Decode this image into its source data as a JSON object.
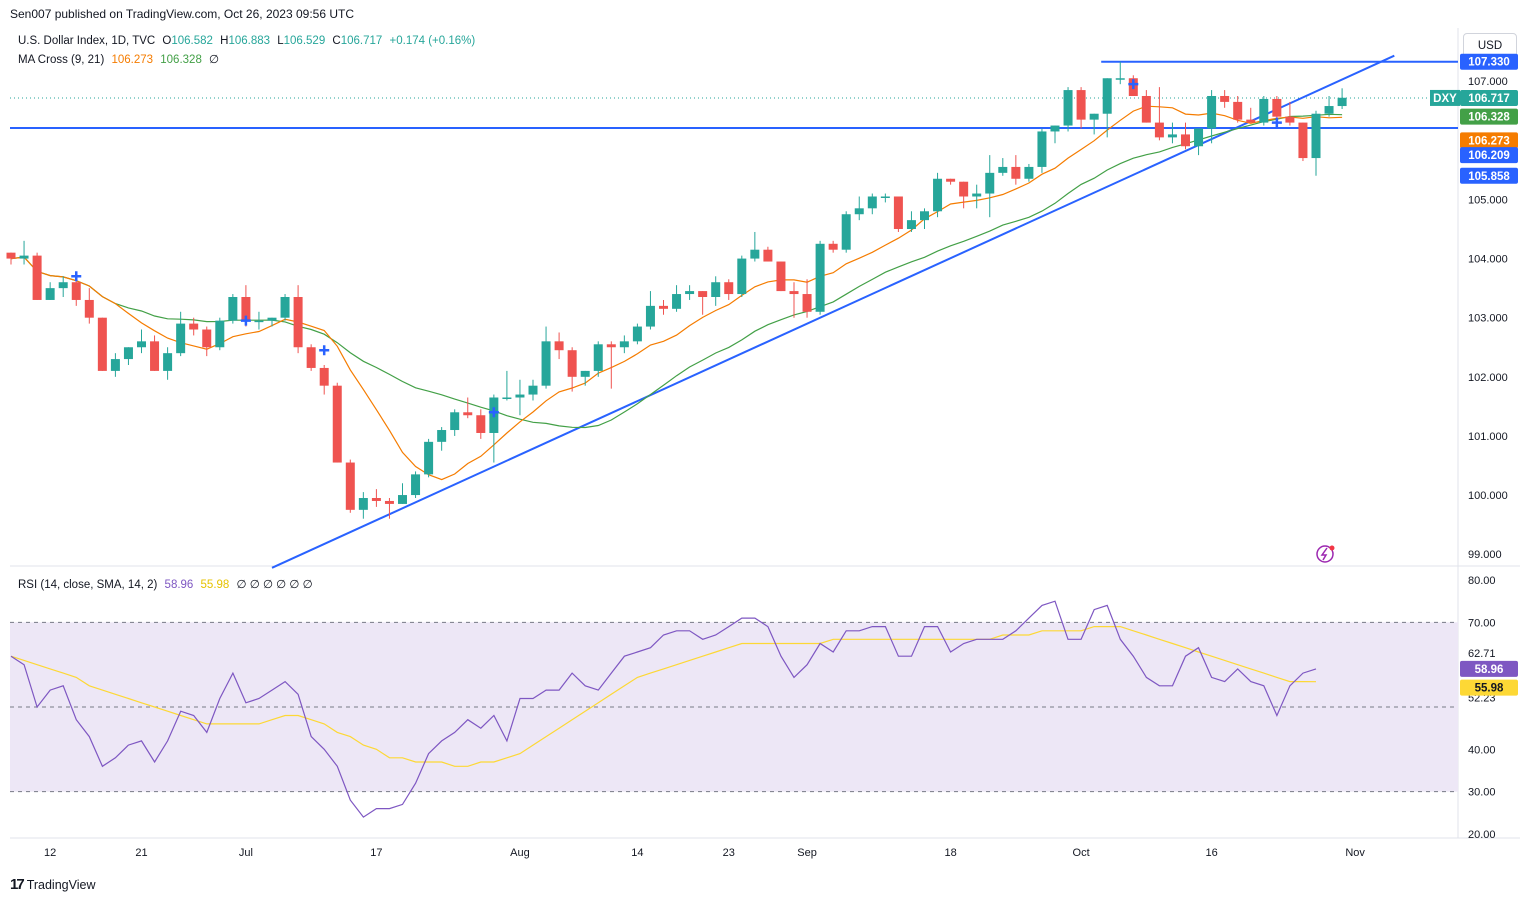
{
  "header": {
    "publisher": "Sen007 published on TradingView.com, Oct 26, 2023 09:56 UTC",
    "symbol": "U.S. Dollar Index, 1D, TVC",
    "ohlc": {
      "o_label": "O",
      "o": "106.582",
      "h_label": "H",
      "h": "106.883",
      "l_label": "L",
      "l": "106.529",
      "c_label": "C",
      "c": "106.717",
      "change": "+0.174 (+0.16%)"
    },
    "ma_legend": {
      "label": "MA Cross (9, 21)",
      "fast": "106.273",
      "slow": "106.328",
      "extra": "∅"
    },
    "rsi_legend": {
      "label": "RSI (14, close, SMA, 14, 2)",
      "rsi": "58.96",
      "sma": "55.98",
      "extras": "∅ ∅ ∅ ∅ ∅ ∅"
    }
  },
  "currency_button": "USD",
  "footer": {
    "brand": "TradingView",
    "logo_icon": "tv-logo-icon"
  },
  "colors": {
    "up": "#26a69a",
    "down": "#ef5350",
    "ma_fast": "#f57c00",
    "ma_slow": "#43a047",
    "trend": "#2962ff",
    "rsi": "#7e57c2",
    "rsi_sma": "#fdd835",
    "rsi_band": "#ede7f6"
  },
  "chart_data": [
    {
      "type": "candlestick",
      "title": "U.S. Dollar Index, 1D, TVC",
      "ylim": [
        98.8,
        107.9
      ],
      "y_ticks": [
        "107.000",
        "106.000",
        "105.000",
        "104.000",
        "103.000",
        "102.000",
        "101.000",
        "100.000",
        "99.000"
      ],
      "x_ticks": [
        {
          "label": "12",
          "i": 3
        },
        {
          "label": "21",
          "i": 10
        },
        {
          "label": "Jul",
          "i": 18
        },
        {
          "label": "17",
          "i": 28
        },
        {
          "label": "Aug",
          "i": 39
        },
        {
          "label": "14",
          "i": 48
        },
        {
          "label": "23",
          "i": 55
        },
        {
          "label": "Sep",
          "i": 61
        },
        {
          "label": "18",
          "i": 72
        },
        {
          "label": "Oct",
          "i": 82
        },
        {
          "label": "16",
          "i": 92
        },
        {
          "label": "Nov",
          "i": 103
        }
      ],
      "candles": [
        [
          104.1,
          104.1,
          103.9,
          104.0
        ],
        [
          104.0,
          104.3,
          103.9,
          104.05
        ],
        [
          104.05,
          104.1,
          103.3,
          103.3
        ],
        [
          103.3,
          103.6,
          103.3,
          103.5
        ],
        [
          103.5,
          103.7,
          103.35,
          103.6
        ],
        [
          103.6,
          103.7,
          103.2,
          103.3
        ],
        [
          103.3,
          103.5,
          102.9,
          103.0
        ],
        [
          103.0,
          103.0,
          102.1,
          102.1
        ],
        [
          102.1,
          102.4,
          102.0,
          102.3
        ],
        [
          102.3,
          102.5,
          102.2,
          102.5
        ],
        [
          102.5,
          102.8,
          102.4,
          102.6
        ],
        [
          102.6,
          102.7,
          102.1,
          102.1
        ],
        [
          102.1,
          102.5,
          101.95,
          102.4
        ],
        [
          102.4,
          103.1,
          102.35,
          102.9
        ],
        [
          102.9,
          103.0,
          102.7,
          102.8
        ],
        [
          102.8,
          102.85,
          102.35,
          102.5
        ],
        [
          102.5,
          103.0,
          102.45,
          102.95
        ],
        [
          102.95,
          103.4,
          102.9,
          103.35
        ],
        [
          103.35,
          103.55,
          102.85,
          102.95
        ],
        [
          102.95,
          103.1,
          102.8,
          102.95
        ],
        [
          102.95,
          103.0,
          102.85,
          103.0
        ],
        [
          103.0,
          103.4,
          102.95,
          103.35
        ],
        [
          103.35,
          103.55,
          102.4,
          102.5
        ],
        [
          102.5,
          102.55,
          102.1,
          102.15
        ],
        [
          102.15,
          102.2,
          101.7,
          101.85
        ],
        [
          101.85,
          101.9,
          100.55,
          100.55
        ],
        [
          100.55,
          100.6,
          99.7,
          99.75
        ],
        [
          99.75,
          100.05,
          99.6,
          99.95
        ],
        [
          99.95,
          100.1,
          99.8,
          99.9
        ],
        [
          99.9,
          99.95,
          99.6,
          99.85
        ],
        [
          99.85,
          100.2,
          99.85,
          100.0
        ],
        [
          100.0,
          100.4,
          99.95,
          100.35
        ],
        [
          100.35,
          100.95,
          100.3,
          100.9
        ],
        [
          100.9,
          101.15,
          100.75,
          101.1
        ],
        [
          101.1,
          101.45,
          101.0,
          101.4
        ],
        [
          101.4,
          101.65,
          101.3,
          101.35
        ],
        [
          101.35,
          101.45,
          100.95,
          101.05
        ],
        [
          101.05,
          101.7,
          100.55,
          101.65
        ],
        [
          101.65,
          102.1,
          101.6,
          101.65
        ],
        [
          101.65,
          101.95,
          101.35,
          101.7
        ],
        [
          101.7,
          101.95,
          101.6,
          101.85
        ],
        [
          101.85,
          102.85,
          101.8,
          102.6
        ],
        [
          102.6,
          102.75,
          102.3,
          102.45
        ],
        [
          102.45,
          102.5,
          101.75,
          102.0
        ],
        [
          102.0,
          102.1,
          101.85,
          102.1
        ],
        [
          102.1,
          102.6,
          102.0,
          102.55
        ],
        [
          102.55,
          102.6,
          101.8,
          102.5
        ],
        [
          102.5,
          102.7,
          102.4,
          102.6
        ],
        [
          102.6,
          102.9,
          102.55,
          102.85
        ],
        [
          102.85,
          103.45,
          102.8,
          103.2
        ],
        [
          103.2,
          103.3,
          103.05,
          103.15
        ],
        [
          103.15,
          103.55,
          103.1,
          103.4
        ],
        [
          103.4,
          103.55,
          103.3,
          103.45
        ],
        [
          103.45,
          103.45,
          103.05,
          103.35
        ],
        [
          103.35,
          103.7,
          103.2,
          103.6
        ],
        [
          103.6,
          103.65,
          103.3,
          103.4
        ],
        [
          103.4,
          104.05,
          103.35,
          104.0
        ],
        [
          104.0,
          104.45,
          103.95,
          104.15
        ],
        [
          104.15,
          104.2,
          103.95,
          103.95
        ],
        [
          103.95,
          103.95,
          103.45,
          103.45
        ],
        [
          103.45,
          103.6,
          103.0,
          103.4
        ],
        [
          103.4,
          103.65,
          103.0,
          103.1
        ],
        [
          103.1,
          104.3,
          103.05,
          104.25
        ],
        [
          104.25,
          104.3,
          104.1,
          104.15
        ],
        [
          104.15,
          104.8,
          104.1,
          104.75
        ],
        [
          104.75,
          105.05,
          104.65,
          104.85
        ],
        [
          104.85,
          105.1,
          104.75,
          105.05
        ],
        [
          105.05,
          105.1,
          104.95,
          105.05
        ],
        [
          105.05,
          105.05,
          104.45,
          104.5
        ],
        [
          104.5,
          104.8,
          104.45,
          104.65
        ],
        [
          104.65,
          104.85,
          104.5,
          104.8
        ],
        [
          104.8,
          105.45,
          104.7,
          105.35
        ],
        [
          105.35,
          105.35,
          105.25,
          105.3
        ],
        [
          105.3,
          105.3,
          104.85,
          105.05
        ],
        [
          105.05,
          105.25,
          104.85,
          105.1
        ],
        [
          105.1,
          105.75,
          104.7,
          105.45
        ],
        [
          105.45,
          105.7,
          105.4,
          105.55
        ],
        [
          105.55,
          105.75,
          105.25,
          105.35
        ],
        [
          105.35,
          105.6,
          105.3,
          105.55
        ],
        [
          105.55,
          106.2,
          105.45,
          106.15
        ],
        [
          106.15,
          106.25,
          105.95,
          106.25
        ],
        [
          106.25,
          106.9,
          106.15,
          106.85
        ],
        [
          106.85,
          106.9,
          106.2,
          106.35
        ],
        [
          106.35,
          106.45,
          106.1,
          106.45
        ],
        [
          106.45,
          107.05,
          106.05,
          107.05
        ],
        [
          107.05,
          107.33,
          106.95,
          107.05
        ],
        [
          107.05,
          107.1,
          106.75,
          106.75
        ],
        [
          106.75,
          106.85,
          106.3,
          106.3
        ],
        [
          106.3,
          106.9,
          106.0,
          106.05
        ],
        [
          106.05,
          106.3,
          105.95,
          106.1
        ],
        [
          106.1,
          106.3,
          105.85,
          105.9
        ],
        [
          105.9,
          106.2,
          105.75,
          106.2
        ],
        [
          106.2,
          106.85,
          105.95,
          106.75
        ],
        [
          106.75,
          106.85,
          106.55,
          106.65
        ],
        [
          106.65,
          106.75,
          106.3,
          106.35
        ],
        [
          106.35,
          106.55,
          106.3,
          106.3
        ],
        [
          106.3,
          106.75,
          106.25,
          106.7
        ],
        [
          106.7,
          106.75,
          106.35,
          106.4
        ],
        [
          106.4,
          106.65,
          106.25,
          106.3
        ],
        [
          106.3,
          106.3,
          105.65,
          105.7
        ],
        [
          105.7,
          106.5,
          105.4,
          106.45
        ],
        [
          106.45,
          106.75,
          106.4,
          106.58
        ],
        [
          106.58,
          106.88,
          106.53,
          106.72
        ]
      ],
      "ma_fast": {
        "name": "MA 9",
        "value": "106.273"
      },
      "ma_slow": {
        "name": "MA 21",
        "value": "106.328"
      },
      "support_line": 106.209,
      "resistance_line": 107.33,
      "last_price": 106.717,
      "trendline": [
        [
          20,
          99.75
        ],
        [
          106,
          107.33
        ]
      ],
      "cross_markers": [
        [
          5,
          103.7
        ],
        [
          18,
          102.95
        ],
        [
          24,
          102.45
        ],
        [
          37,
          101.4
        ],
        [
          86,
          106.95
        ],
        [
          97,
          106.3
        ]
      ],
      "badges": [
        {
          "label": "",
          "value": "107.330",
          "y": 107.33,
          "bg": "#2962ff"
        },
        {
          "label": "DXY",
          "value": "106.717",
          "y": 106.717,
          "bg": "#26a69a"
        },
        {
          "label": "",
          "value": "106.328",
          "y": 106.4,
          "bg": "#43a047"
        },
        {
          "label": "",
          "value": "106.273",
          "y": 106.0,
          "bg": "#f57c00"
        },
        {
          "label": "",
          "value": "106.209",
          "y": 105.75,
          "bg": "#2962ff"
        },
        {
          "label": "",
          "value": "105.858",
          "y": 105.4,
          "bg": "#2962ff"
        }
      ]
    },
    {
      "type": "line",
      "title": "RSI (14, close, SMA, 14, 2)",
      "ylim": [
        20,
        80
      ],
      "y_ticks": [
        "80.00",
        "70.00",
        "62.71",
        "52.23",
        "40.00",
        "30.00",
        "20.00"
      ],
      "band": [
        30,
        70
      ],
      "rsi": [
        62,
        60,
        50,
        54,
        55,
        47,
        43,
        36,
        38,
        41,
        42,
        37,
        42,
        49,
        48,
        44,
        52,
        58,
        51,
        52,
        54,
        56,
        53,
        43,
        40,
        36,
        28,
        24,
        26,
        26,
        27,
        32,
        39,
        42,
        44,
        47,
        45,
        48,
        42,
        52,
        52,
        54,
        54,
        58,
        55,
        54,
        58,
        62,
        63,
        64,
        67,
        68,
        68,
        66,
        67,
        69,
        71,
        71,
        69,
        62,
        57,
        60,
        65,
        63,
        68,
        68,
        69,
        69,
        62,
        62,
        69,
        69,
        63,
        65,
        66,
        66,
        66,
        68,
        71,
        74,
        75,
        66,
        66,
        73,
        74,
        66,
        62,
        57,
        55,
        55,
        62,
        64,
        57,
        56,
        59,
        56,
        55,
        48,
        55,
        58,
        59
      ],
      "rsi_sma": [
        62,
        61,
        60,
        59,
        58,
        57,
        55,
        54,
        53,
        52,
        51,
        50,
        49,
        48,
        47,
        46,
        46,
        46,
        46,
        46,
        47,
        48,
        48,
        47,
        46,
        44,
        43,
        41,
        40,
        38,
        38,
        37,
        37,
        37,
        36,
        36,
        37,
        37,
        38,
        39,
        41,
        43,
        45,
        47,
        49,
        51,
        53,
        55,
        57,
        58,
        59,
        60,
        61,
        62,
        63,
        64,
        65,
        65,
        65,
        65,
        65,
        65,
        65,
        66,
        66,
        66,
        66,
        66,
        66,
        66,
        66,
        66,
        66,
        66,
        66,
        66,
        67,
        67,
        67,
        68,
        68,
        68,
        68,
        69,
        69,
        69,
        68,
        67,
        66,
        65,
        64,
        63,
        62,
        61,
        60,
        59,
        58,
        57,
        56,
        56,
        55.98
      ]
    }
  ]
}
